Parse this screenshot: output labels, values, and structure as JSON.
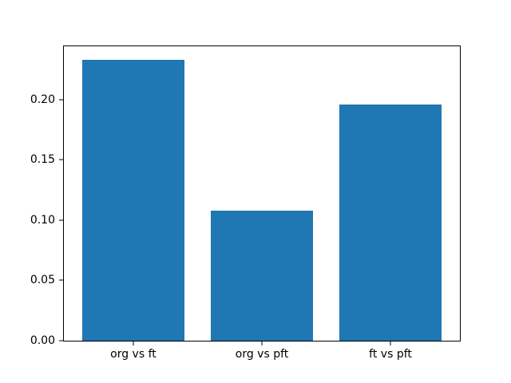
{
  "figure": {
    "background": "#ffffff",
    "bar_color": "#1f77b4",
    "spine_color": "#000000",
    "tick_label_color": "#000000"
  },
  "chart_data": {
    "type": "bar",
    "categories": [
      "org vs ft",
      "org vs pft",
      "ft vs pft"
    ],
    "values": [
      0.233,
      0.108,
      0.196
    ],
    "title": "",
    "xlabel": "",
    "ylabel": "",
    "ylim": [
      0,
      0.244
    ],
    "xlim": [
      -0.54,
      2.54
    ],
    "bar_width_fraction": 0.8,
    "yticks": [
      0.0,
      0.05,
      0.1,
      0.15,
      0.2
    ],
    "ytick_labels": [
      "0.00",
      "0.05",
      "0.10",
      "0.15",
      "0.20"
    ],
    "grid": false,
    "legend": null
  }
}
